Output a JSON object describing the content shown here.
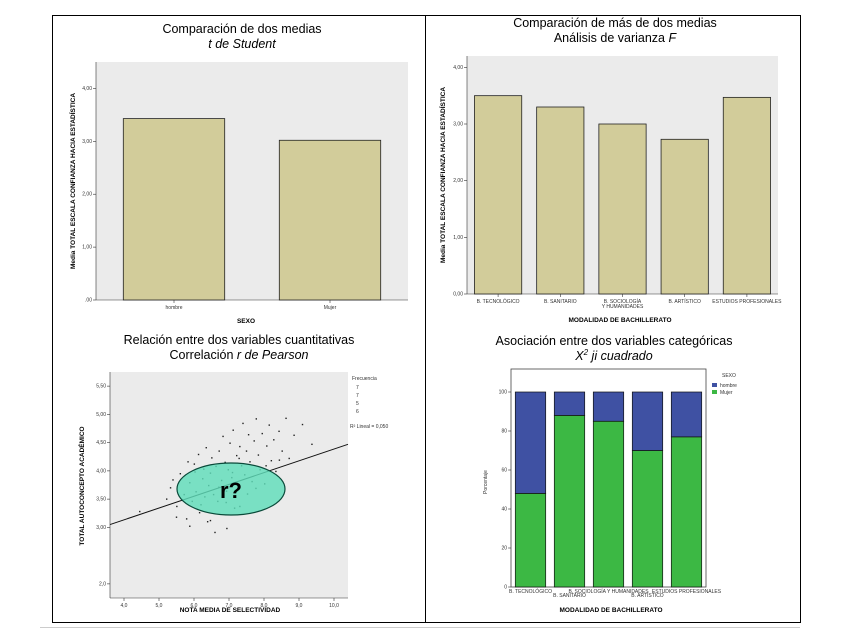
{
  "chart_data": [
    {
      "type": "bar",
      "title": "Comparación de dos medias",
      "subtitle": "t de Student",
      "xlabel": "SEXO",
      "ylabel": "Media TOTAL ESCALA CONFIANZA HACIA ESTADÍSTICA",
      "categories": [
        "hombre",
        "Mujer"
      ],
      "values": [
        3.43,
        3.02
      ],
      "yticks": [
        ".00",
        "1,00",
        "2,00",
        "3,00",
        "4,00"
      ],
      "ylim": [
        0,
        4.5
      ],
      "color": "#d2cc9a"
    },
    {
      "type": "bar",
      "title": "Comparación de más de dos medias",
      "subtitle": "Análisis de varianza F",
      "xlabel": "MODALIDAD DE BACHILLERATO",
      "ylabel": "Media TOTAL ESCALA CONFIANZA HACIA ESTADÍSTICA",
      "categories": [
        "B. TECNOLÓGICO",
        "B. SANITARIO",
        "B. SOCIOLOGÍA Y HUMANIDADES",
        "B. ARTÍSTICO",
        "ESTUDIOS PROFESIONALES"
      ],
      "values": [
        3.5,
        3.3,
        3.0,
        2.73,
        3.47
      ],
      "yticks": [
        "0,00",
        "1,00",
        "2,00",
        "3,00",
        "4,00"
      ],
      "ylim": [
        0,
        4.2
      ],
      "color": "#d2cc9a"
    },
    {
      "type": "scatter",
      "title": "Relación entre dos variables cuantitativas",
      "subtitle": "Correlación r de Pearson",
      "xlabel": "NOTA MEDIA DE SELECTIVIDAD",
      "ylabel": "TOTAL AUTOCONCEPTO ACADÉMICO",
      "xticks": [
        "4,0",
        "5,0",
        "6,0",
        "7,0",
        "8,0",
        "9,0",
        "10,0"
      ],
      "yticks": [
        "2,0",
        "3,00",
        "3,50",
        "4,00",
        "4,50",
        "5,00",
        "5,50"
      ],
      "xlim": [
        3.6,
        10.4
      ],
      "ylim": [
        1.75,
        5.75
      ],
      "fit_line": [
        [
          3.6,
          3.05
        ],
        [
          10.4,
          4.47
        ]
      ],
      "annotation": "r?",
      "legend": {
        "title": "Frecuencia",
        "items": [
          "7",
          "7",
          "5",
          "6"
        ],
        "fit": "R² Lineal = 0,050"
      },
      "points": [
        [
          4.45,
          3.28
        ],
        [
          5.22,
          3.5
        ],
        [
          5.33,
          3.7
        ],
        [
          5.4,
          3.84
        ],
        [
          5.51,
          3.37
        ],
        [
          5.61,
          3.95
        ],
        [
          5.72,
          3.58
        ],
        [
          5.79,
          3.15
        ],
        [
          5.83,
          4.16
        ],
        [
          5.88,
          3.79
        ],
        [
          5.95,
          3.46
        ],
        [
          6.03,
          3.98
        ],
        [
          6.06,
          3.63
        ],
        [
          6.13,
          4.29
        ],
        [
          6.16,
          3.26
        ],
        [
          6.25,
          3.86
        ],
        [
          6.28,
          4.03
        ],
        [
          6.31,
          3.54
        ],
        [
          6.35,
          4.41
        ],
        [
          6.42,
          3.74
        ],
        [
          6.47,
          3.96
        ],
        [
          6.51,
          4.23
        ],
        [
          6.56,
          3.58
        ],
        [
          6.6,
          2.91
        ],
        [
          6.63,
          4.08
        ],
        [
          6.68,
          3.46
        ],
        [
          6.72,
          4.35
        ],
        [
          6.79,
          3.83
        ],
        [
          6.83,
          4.61
        ],
        [
          6.89,
          4.15
        ],
        [
          6.93,
          3.64
        ],
        [
          6.98,
          4.02
        ],
        [
          7.03,
          4.49
        ],
        [
          7.08,
          3.88
        ],
        [
          7.12,
          4.72
        ],
        [
          7.16,
          3.34
        ],
        [
          7.22,
          4.27
        ],
        [
          7.27,
          3.74
        ],
        [
          7.31,
          4.43
        ],
        [
          7.36,
          4.09
        ],
        [
          7.4,
          4.84
        ],
        [
          7.45,
          3.93
        ],
        [
          7.5,
          4.35
        ],
        [
          7.56,
          4.64
        ],
        [
          7.6,
          4.16
        ],
        [
          7.66,
          3.81
        ],
        [
          7.72,
          4.53
        ],
        [
          7.78,
          4.92
        ],
        [
          7.84,
          4.28
        ],
        [
          7.89,
          4.02
        ],
        [
          7.95,
          4.66
        ],
        [
          8.02,
          3.77
        ],
        [
          8.08,
          4.44
        ],
        [
          8.15,
          4.81
        ],
        [
          8.21,
          4.18
        ],
        [
          8.28,
          4.55
        ],
        [
          8.34,
          3.99
        ],
        [
          8.43,
          4.7
        ],
        [
          8.52,
          4.35
        ],
        [
          8.63,
          4.93
        ],
        [
          8.72,
          4.22
        ],
        [
          8.86,
          4.63
        ],
        [
          9.1,
          4.82
        ],
        [
          9.37,
          4.47
        ],
        [
          5.88,
          3.02
        ],
        [
          6.2,
          3.4
        ],
        [
          6.47,
          3.12
        ],
        [
          6.71,
          3.71
        ],
        [
          6.92,
          3.44
        ],
        [
          7.1,
          3.97
        ],
        [
          7.29,
          4.22
        ],
        [
          7.53,
          3.59
        ],
        [
          7.77,
          3.69
        ],
        [
          8.06,
          4.09
        ],
        [
          8.44,
          4.19
        ],
        [
          6.39,
          3.1
        ],
        [
          6.94,
          2.98
        ],
        [
          7.31,
          3.37
        ],
        [
          5.5,
          3.18
        ],
        [
          6.01,
          4.12
        ]
      ]
    },
    {
      "type": "bar",
      "stacked": true,
      "title": "Asociación entre dos variables categóricas",
      "subtitle": "X² ji cuadrado",
      "xlabel": "MODALIDAD DE BACHILLERATO",
      "ylabel": "Porcentaje",
      "categories": [
        "B. TECNOLÓGICO",
        "B. SANITARIO",
        "B. SOCIOLOGÍA Y HUMANIDADES",
        "B. ARTÍSTICO",
        "ESTUDIOS PROFESIONALES"
      ],
      "legend": {
        "title": "SEXO",
        "items": [
          "hombre",
          "Mujer"
        ]
      },
      "series": [
        {
          "name": "Mujer",
          "color": "#3cb844",
          "values": [
            48,
            88,
            85,
            70,
            77
          ]
        },
        {
          "name": "hombre",
          "color": "#3f51a3",
          "values": [
            52,
            12,
            15,
            30,
            23
          ]
        }
      ],
      "yticks": [
        "0",
        "20",
        "40",
        "60",
        "80",
        "100"
      ],
      "ylim": [
        0,
        100
      ]
    }
  ]
}
